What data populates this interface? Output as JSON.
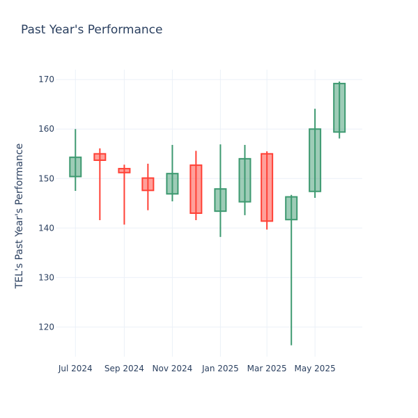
{
  "chart_data": {
    "type": "candlestick",
    "title": "Past Year's Performance",
    "xlabel": "",
    "ylabel": "TEL's Past Year's Performance",
    "ylim": [
      114,
      172
    ],
    "yticks": [
      120,
      130,
      140,
      150,
      160,
      170
    ],
    "xticks": [
      {
        "date": "2024-07-01",
        "label": "Jul 2024"
      },
      {
        "date": "2024-09-01",
        "label": "Sep 2024"
      },
      {
        "date": "2024-11-01",
        "label": "Nov 2024"
      },
      {
        "date": "2025-01-01",
        "label": "Jan 2025"
      },
      {
        "date": "2025-03-01",
        "label": "Mar 2025"
      },
      {
        "date": "2025-05-01",
        "label": "May 2025"
      }
    ],
    "xlim": [
      "2024-06-06",
      "2025-06-30"
    ],
    "grid": true,
    "increasing_color": "#3d9970",
    "decreasing_color": "#ff4136",
    "candles": [
      {
        "date": "2024-07-01",
        "open": 150.4,
        "high": 160.0,
        "low": 147.5,
        "close": 154.3
      },
      {
        "date": "2024-08-01",
        "open": 155.0,
        "high": 156.1,
        "low": 141.6,
        "close": 153.7
      },
      {
        "date": "2024-09-01",
        "open": 152.0,
        "high": 152.8,
        "low": 140.7,
        "close": 151.2
      },
      {
        "date": "2024-10-01",
        "open": 150.1,
        "high": 153.0,
        "low": 143.6,
        "close": 147.6
      },
      {
        "date": "2024-11-01",
        "open": 146.9,
        "high": 156.8,
        "low": 145.4,
        "close": 151.0
      },
      {
        "date": "2024-12-01",
        "open": 152.7,
        "high": 155.6,
        "low": 141.6,
        "close": 143.0
      },
      {
        "date": "2025-01-01",
        "open": 143.4,
        "high": 156.9,
        "low": 138.2,
        "close": 147.9
      },
      {
        "date": "2025-02-01",
        "open": 145.3,
        "high": 156.8,
        "low": 142.6,
        "close": 154.0
      },
      {
        "date": "2025-03-01",
        "open": 155.0,
        "high": 155.5,
        "low": 139.7,
        "close": 141.4
      },
      {
        "date": "2025-04-01",
        "open": 141.7,
        "high": 146.7,
        "low": 116.3,
        "close": 146.3
      },
      {
        "date": "2025-05-01",
        "open": 147.4,
        "high": 164.1,
        "low": 146.1,
        "close": 160.0
      },
      {
        "date": "2025-06-01",
        "open": 159.4,
        "high": 169.6,
        "low": 158.1,
        "close": 169.2
      }
    ]
  }
}
